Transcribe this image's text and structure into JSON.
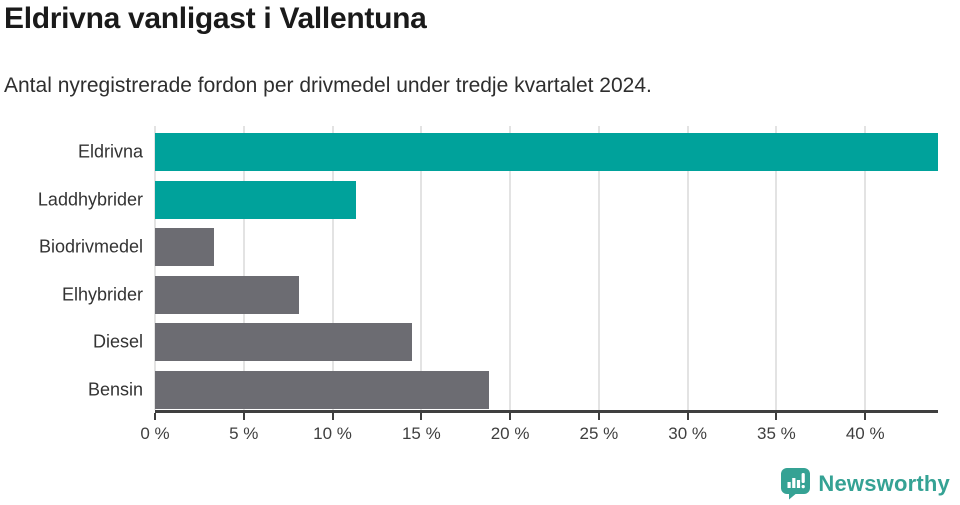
{
  "header": {
    "title": "Eldrivna vanligast i Vallentuna",
    "subtitle": "Antal nyregistrerade fordon per drivmedel under tredje kvartalet 2024."
  },
  "chart_data": {
    "type": "bar",
    "orientation": "horizontal",
    "title": "Eldrivna vanligast i Vallentuna",
    "subtitle": "Antal nyregistrerade fordon per drivmedel under tredje kvartalet 2024.",
    "categories": [
      "Eldrivna",
      "Laddhybrider",
      "Biodrivmedel",
      "Elhybrider",
      "Diesel",
      "Bensin"
    ],
    "values": [
      44.1,
      11.3,
      3.3,
      8.1,
      14.5,
      18.8
    ],
    "value_unit": "%",
    "bar_colors": [
      "#00a29b",
      "#00a29b",
      "#6c6c72",
      "#6c6c72",
      "#6c6c72",
      "#6c6c72"
    ],
    "xlabel": "",
    "ylabel": "",
    "xlim": [
      0,
      44.1
    ],
    "x_ticks": [
      0,
      5,
      10,
      15,
      20,
      25,
      30,
      35,
      40
    ],
    "x_tick_labels": [
      "0 %",
      "5 %",
      "10 %",
      "15 %",
      "20 %",
      "25 %",
      "30 %",
      "35 %",
      "40 %"
    ],
    "grid": true,
    "legend": "none"
  },
  "footer": {
    "brand": "Newsworthy",
    "brand_color": "#35a294",
    "logo_icon": "bar-chart-speech-bubble-icon"
  },
  "colors": {
    "highlight": "#00a29b",
    "neutral": "#6c6c72",
    "grid": "#e3e3e3",
    "axis": "#3f3f3f",
    "title_text": "#1a1a1a",
    "subtitle_text": "#2e2e2e",
    "category_text": "#333333",
    "tick_text": "#3f3f3f",
    "background": "#ffffff"
  }
}
